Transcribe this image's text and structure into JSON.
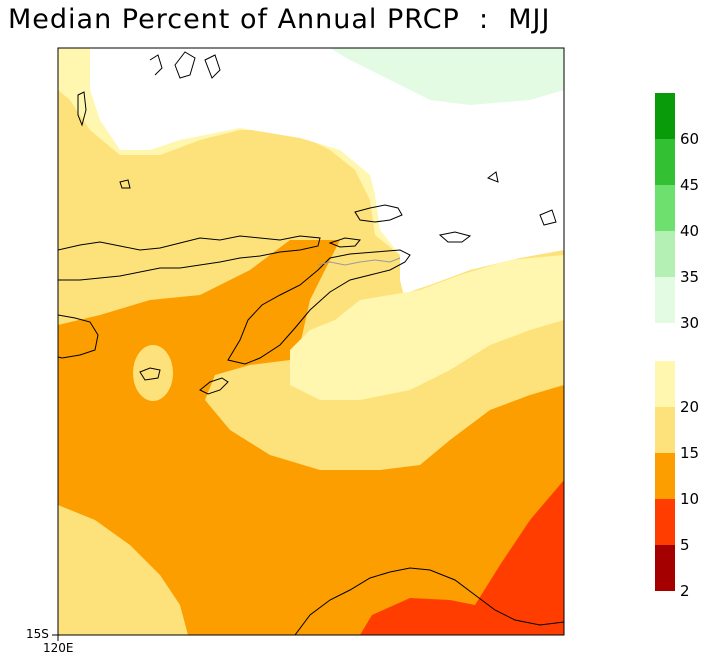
{
  "title": "Median Percent of Annual PRCP  :  MJJ",
  "axes": {
    "lat_label": "15S",
    "lon_label": "120E"
  },
  "legend": {
    "upper": [
      {
        "color": "#0a9b0a",
        "label": "60"
      },
      {
        "color": "#33c033",
        "label": "45"
      },
      {
        "color": "#6ee06e",
        "label": "40"
      },
      {
        "color": "#b4f0b4",
        "label": "35"
      },
      {
        "color": "#e3fbe3",
        "label": "30"
      }
    ],
    "lower": [
      {
        "color": "#fff7b0",
        "label": "20"
      },
      {
        "color": "#fde27c",
        "label": "15"
      },
      {
        "color": "#fc9e00",
        "label": "10"
      },
      {
        "color": "#ff3d00",
        "label": "5"
      },
      {
        "color": "#a50000",
        "label": "2"
      }
    ]
  },
  "colors": {
    "band_lt20": "#fff7b0",
    "band_15_20": "#fde27c",
    "band_10_15": "#fc9e00",
    "band_5_10": "#ff3d00",
    "band_green": "#e3fbe3",
    "coastline": "#000000",
    "border": "#9a9a9a"
  }
}
